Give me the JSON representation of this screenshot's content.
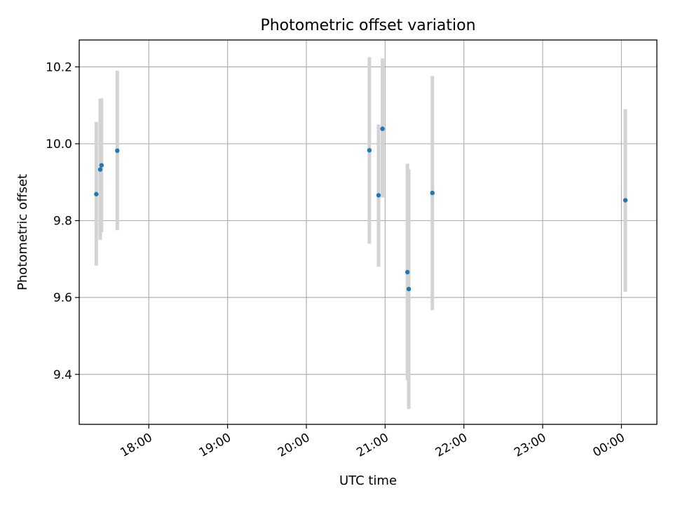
{
  "chart_data": {
    "type": "scatter",
    "title": "Photometric offset variation",
    "xlabel": "UTC time",
    "ylabel": "Photometric offset",
    "x_ticks": [
      "18:00",
      "19:00",
      "20:00",
      "21:00",
      "22:00",
      "23:00",
      "00:00"
    ],
    "y_ticks": [
      "9.4",
      "9.6",
      "9.8",
      "10.0",
      "10.2"
    ],
    "ylim": [
      9.27,
      10.27
    ],
    "xlim": [
      "17:07",
      "00:27"
    ],
    "grid": true,
    "colors": {
      "points": "#1f77b4",
      "errorbars": "#d3d3d3",
      "grid": "#b0b0b0"
    },
    "points": [
      {
        "x": "17:20",
        "y": 9.869,
        "err_low": 9.683,
        "err_high": 10.057
      },
      {
        "x": "17:23",
        "y": 9.933,
        "err_low": 9.75,
        "err_high": 10.117
      },
      {
        "x": "17:24",
        "y": 9.944,
        "err_low": 9.77,
        "err_high": 10.118
      },
      {
        "x": "17:36",
        "y": 9.982,
        "err_low": 9.775,
        "err_high": 10.19
      },
      {
        "x": "20:48",
        "y": 9.983,
        "err_low": 9.74,
        "err_high": 10.225
      },
      {
        "x": "20:55",
        "y": 9.866,
        "err_low": 9.68,
        "err_high": 10.05
      },
      {
        "x": "20:58",
        "y": 10.039,
        "err_low": 9.86,
        "err_high": 10.222
      },
      {
        "x": "21:17",
        "y": 9.666,
        "err_low": 9.385,
        "err_high": 9.948
      },
      {
        "x": "21:18",
        "y": 9.622,
        "err_low": 9.31,
        "err_high": 9.933
      },
      {
        "x": "21:36",
        "y": 9.872,
        "err_low": 9.567,
        "err_high": 10.176
      },
      {
        "x": "00:03",
        "y": 9.853,
        "err_low": 9.615,
        "err_high": 10.09
      }
    ]
  }
}
